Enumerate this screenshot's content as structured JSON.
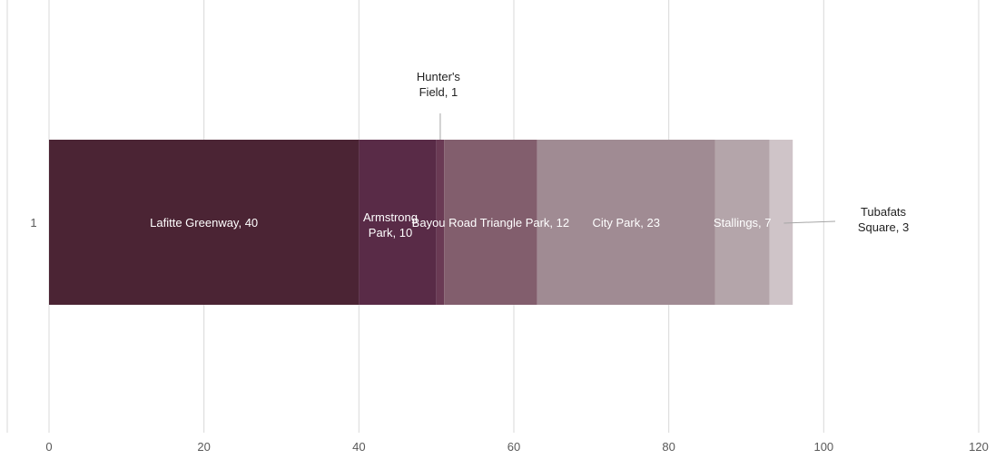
{
  "chart_data": {
    "type": "bar",
    "orientation": "horizontal",
    "stacked": true,
    "categories": [
      "1"
    ],
    "series": [
      {
        "name": "Lafitte Greenway",
        "values": [
          40
        ],
        "color": "#4b2434",
        "label": "Lafitte Greenway, 40"
      },
      {
        "name": "Armstrong Park",
        "values": [
          10
        ],
        "color": "#592b47",
        "label": "Armstrong Park, 10"
      },
      {
        "name": "Hunter's Field",
        "values": [
          1
        ],
        "color": "#6a3a54",
        "label": "Hunter's Field, 1"
      },
      {
        "name": "Bayou Road Triangle Park",
        "values": [
          12
        ],
        "color": "#825e6d",
        "label": "Bayou Road Triangle Park, 12"
      },
      {
        "name": "City Park",
        "values": [
          23
        ],
        "color": "#a08b93",
        "label": "City Park, 23"
      },
      {
        "name": "Stallings",
        "values": [
          7
        ],
        "color": "#b4a5aa",
        "label": "Stallings, 7"
      },
      {
        "name": "Tubafats Square",
        "values": [
          3
        ],
        "color": "#cfc4c8",
        "label": "Tubafats Square, 3"
      }
    ],
    "xlim": [
      0,
      120
    ],
    "xticks": [
      "0",
      "20",
      "40",
      "60",
      "80",
      "100",
      "120"
    ],
    "grid": true,
    "legend": "none",
    "title": "",
    "xlabel": "",
    "ylabel": ""
  }
}
